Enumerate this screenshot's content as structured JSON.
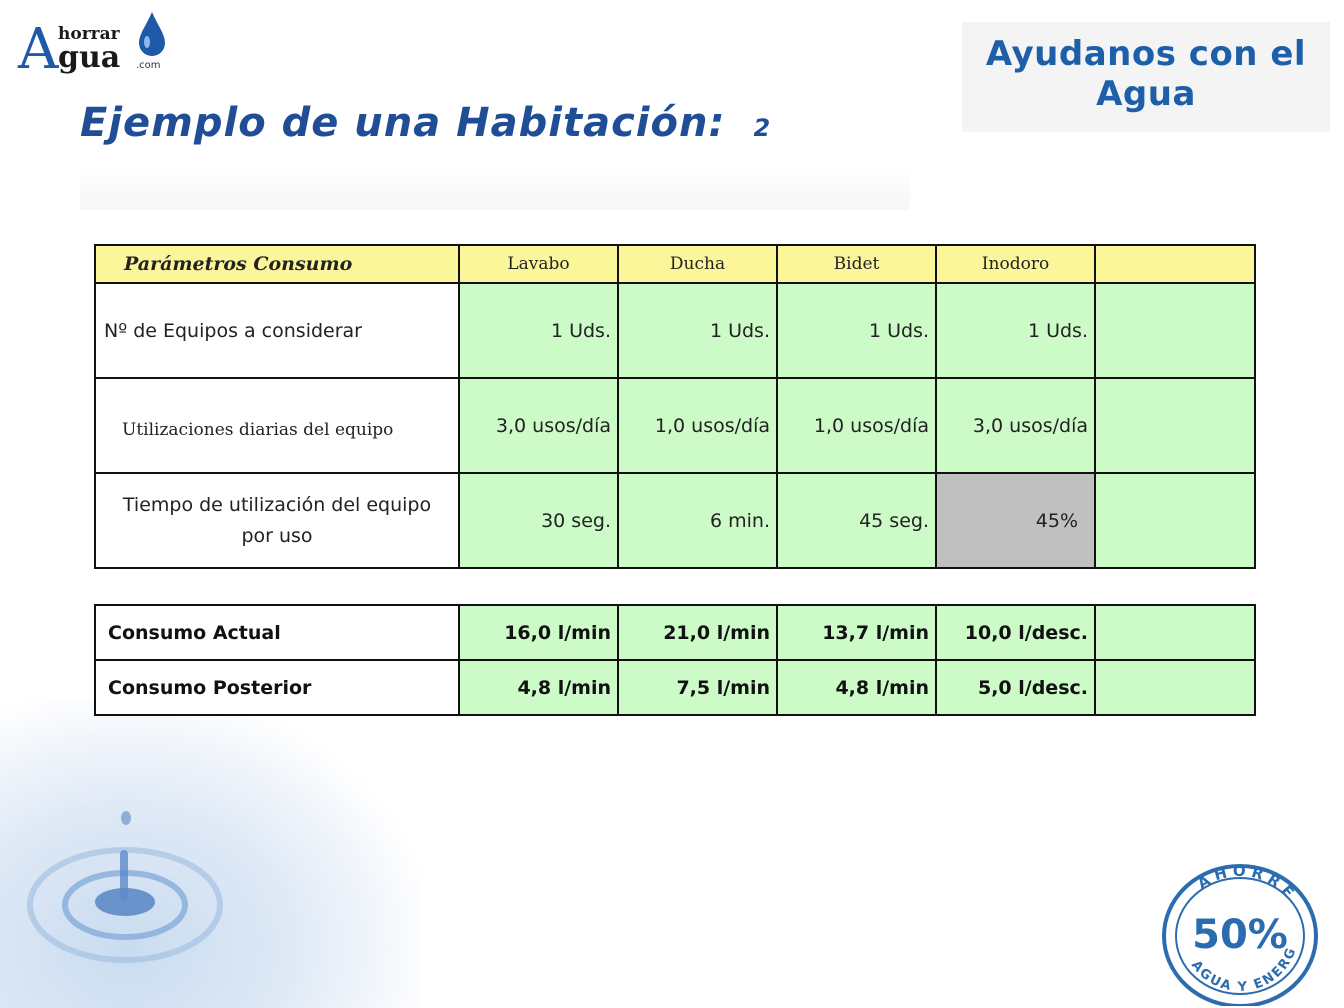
{
  "logo": {
    "a": "A",
    "horrar": "horrar",
    "gua": "gua",
    "com": ".com"
  },
  "banner": {
    "line1": "Ayudanos con el",
    "line2": "Agua"
  },
  "title": {
    "text": "Ejemplo de una Habitación:",
    "number": "2"
  },
  "parameters_table": {
    "header": [
      "Parámetros Consumo",
      "Lavabo",
      "Ducha",
      "Bidet",
      "Inodoro",
      ""
    ],
    "rows": [
      {
        "label": "Nº de Equipos a considerar",
        "values": [
          "1 Uds.",
          "1 Uds.",
          "1 Uds.",
          "1 Uds."
        ]
      },
      {
        "label": "Utilizaciones diarias del equipo",
        "values": [
          "3,0 usos/día",
          "1,0 usos/día",
          "1,0 usos/día",
          "3,0 usos/día"
        ]
      },
      {
        "label": "Tiempo de utilización del equipo por uso",
        "label_line1": "Tiempo de utilización del equipo",
        "label_line2": "por uso",
        "values": [
          "30 seg.",
          "6 min.",
          "45 seg.",
          "45%"
        ]
      }
    ]
  },
  "consumption_table": {
    "rows": [
      {
        "label": "Consumo Actual",
        "values": [
          "16,0 l/min",
          "21,0 l/min",
          "13,7 l/min",
          "10,0 l/desc."
        ]
      },
      {
        "label": "Consumo Posterior",
        "values": [
          "4,8 l/min",
          "7,5 l/min",
          "4,8 l/min",
          "5,0 l/desc."
        ]
      }
    ]
  },
  "seal": {
    "top": "AHORRE",
    "center": "50%",
    "bottom": "AGUA Y ENERGÍA"
  },
  "colors": {
    "title_blue": "#1f4e96",
    "header_yellow": "#fbf69a",
    "cell_green": "#ccfbc8",
    "cell_gray": "#c0c0c0",
    "seal_blue": "#2b6cb0"
  }
}
